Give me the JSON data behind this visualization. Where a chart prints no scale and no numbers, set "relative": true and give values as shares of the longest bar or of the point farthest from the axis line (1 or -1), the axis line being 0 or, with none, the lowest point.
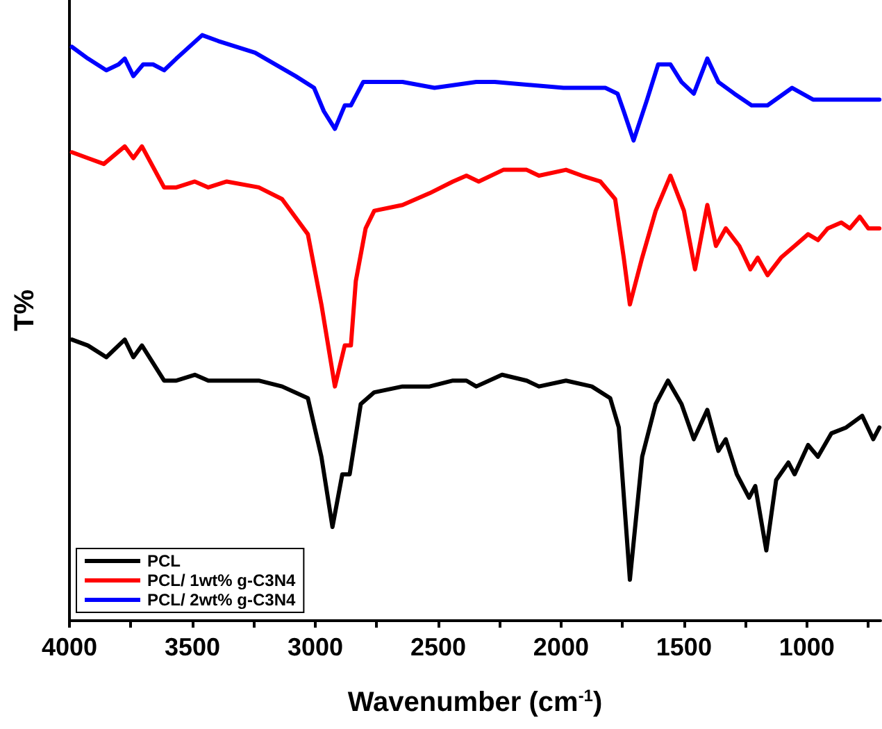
{
  "chart_data": {
    "type": "line",
    "relative": true,
    "xlabel": "Wavenumber (cm$^{-1}$)",
    "ylabel": "T%",
    "xlim": [
      4000,
      700
    ],
    "xticks": [
      4000,
      {
        "value": 3750,
        "label": null
      },
      3500,
      {
        "value": 3250,
        "label": null
      },
      3000,
      {
        "value": 2750,
        "label": null
      },
      2500,
      {
        "value": 2250,
        "label": null
      },
      2000,
      {
        "value": 1750,
        "label": null
      },
      1500,
      {
        "value": 1250,
        "label": null
      },
      1000,
      {
        "value": 750,
        "label": null
      }
    ],
    "legend": "bottom left",
    "grid": false,
    "marker": "none",
    "line_style": "solid",
    "series": [
      {
        "name": "PCL",
        "color": "#000000",
        "x": [
          3990,
          3925,
          3850,
          3775,
          3740,
          3705,
          3615,
          3565,
          3490,
          3435,
          3230,
          3135,
          3030,
          2975,
          2930,
          2890,
          2860,
          2815,
          2760,
          2645,
          2535,
          2440,
          2385,
          2345,
          2240,
          2140,
          2090,
          1980,
          1875,
          1800,
          1765,
          1720,
          1670,
          1615,
          1565,
          1510,
          1460,
          1405,
          1360,
          1330,
          1285,
          1235,
          1210,
          1165,
          1125,
          1075,
          1050,
          995,
          955,
          900,
          840,
          775,
          730,
          705
        ],
        "values": [
          0.48,
          0.47,
          0.45,
          0.48,
          0.45,
          0.47,
          0.41,
          0.41,
          0.42,
          0.41,
          0.41,
          0.4,
          0.38,
          0.28,
          0.16,
          0.25,
          0.25,
          0.37,
          0.39,
          0.4,
          0.4,
          0.41,
          0.41,
          0.4,
          0.42,
          0.41,
          0.4,
          0.41,
          0.4,
          0.38,
          0.33,
          0.07,
          0.28,
          0.37,
          0.41,
          0.37,
          0.31,
          0.36,
          0.29,
          0.31,
          0.25,
          0.21,
          0.23,
          0.12,
          0.24,
          0.27,
          0.25,
          0.3,
          0.28,
          0.32,
          0.33,
          0.35,
          0.31,
          0.33
        ]
      },
      {
        "name": "PCL/ 1wt% g-C3N4",
        "color": "#ff0000",
        "x": [
          3990,
          3925,
          3860,
          3775,
          3740,
          3705,
          3615,
          3565,
          3490,
          3435,
          3360,
          3230,
          3135,
          3030,
          2975,
          2920,
          2880,
          2855,
          2835,
          2795,
          2760,
          2645,
          2535,
          2440,
          2385,
          2335,
          2235,
          2140,
          2090,
          1980,
          1915,
          1840,
          1780,
          1745,
          1720,
          1670,
          1615,
          1555,
          1500,
          1455,
          1405,
          1370,
          1330,
          1275,
          1230,
          1200,
          1160,
          1105,
          1050,
          995,
          955,
          915,
          860,
          825,
          785,
          750,
          705
        ],
        "values": [
          0.8,
          0.79,
          0.78,
          0.81,
          0.79,
          0.81,
          0.74,
          0.74,
          0.75,
          0.74,
          0.75,
          0.74,
          0.72,
          0.66,
          0.54,
          0.4,
          0.47,
          0.47,
          0.58,
          0.67,
          0.7,
          0.71,
          0.73,
          0.75,
          0.76,
          0.75,
          0.77,
          0.77,
          0.76,
          0.77,
          0.76,
          0.75,
          0.72,
          0.62,
          0.54,
          0.62,
          0.7,
          0.76,
          0.7,
          0.6,
          0.71,
          0.64,
          0.67,
          0.64,
          0.6,
          0.62,
          0.59,
          0.62,
          0.64,
          0.66,
          0.65,
          0.67,
          0.68,
          0.67,
          0.69,
          0.67,
          0.67
        ]
      },
      {
        "name": "PCL/ 2wt% g-C3N4",
        "color": "#0000ff",
        "x": [
          3990,
          3925,
          3850,
          3800,
          3775,
          3740,
          3700,
          3660,
          3615,
          3565,
          3460,
          3395,
          3245,
          3080,
          3005,
          2965,
          2920,
          2880,
          2855,
          2805,
          2760,
          2645,
          2515,
          2345,
          2325,
          2270,
          1990,
          1820,
          1770,
          1745,
          1705,
          1650,
          1605,
          1555,
          1510,
          1460,
          1405,
          1360,
          1295,
          1225,
          1160,
          1060,
          975,
          860,
          785,
          750,
          705
        ],
        "values": [
          0.98,
          0.96,
          0.94,
          0.95,
          0.96,
          0.93,
          0.95,
          0.95,
          0.94,
          0.96,
          1.0,
          0.99,
          0.97,
          0.93,
          0.91,
          0.87,
          0.84,
          0.88,
          0.88,
          0.92,
          0.92,
          0.92,
          0.91,
          0.92,
          0.92,
          0.92,
          0.91,
          0.91,
          0.9,
          0.87,
          0.82,
          0.89,
          0.95,
          0.95,
          0.92,
          0.9,
          0.96,
          0.92,
          0.9,
          0.88,
          0.88,
          0.91,
          0.89,
          0.89,
          0.89,
          0.89,
          0.89
        ]
      }
    ]
  }
}
